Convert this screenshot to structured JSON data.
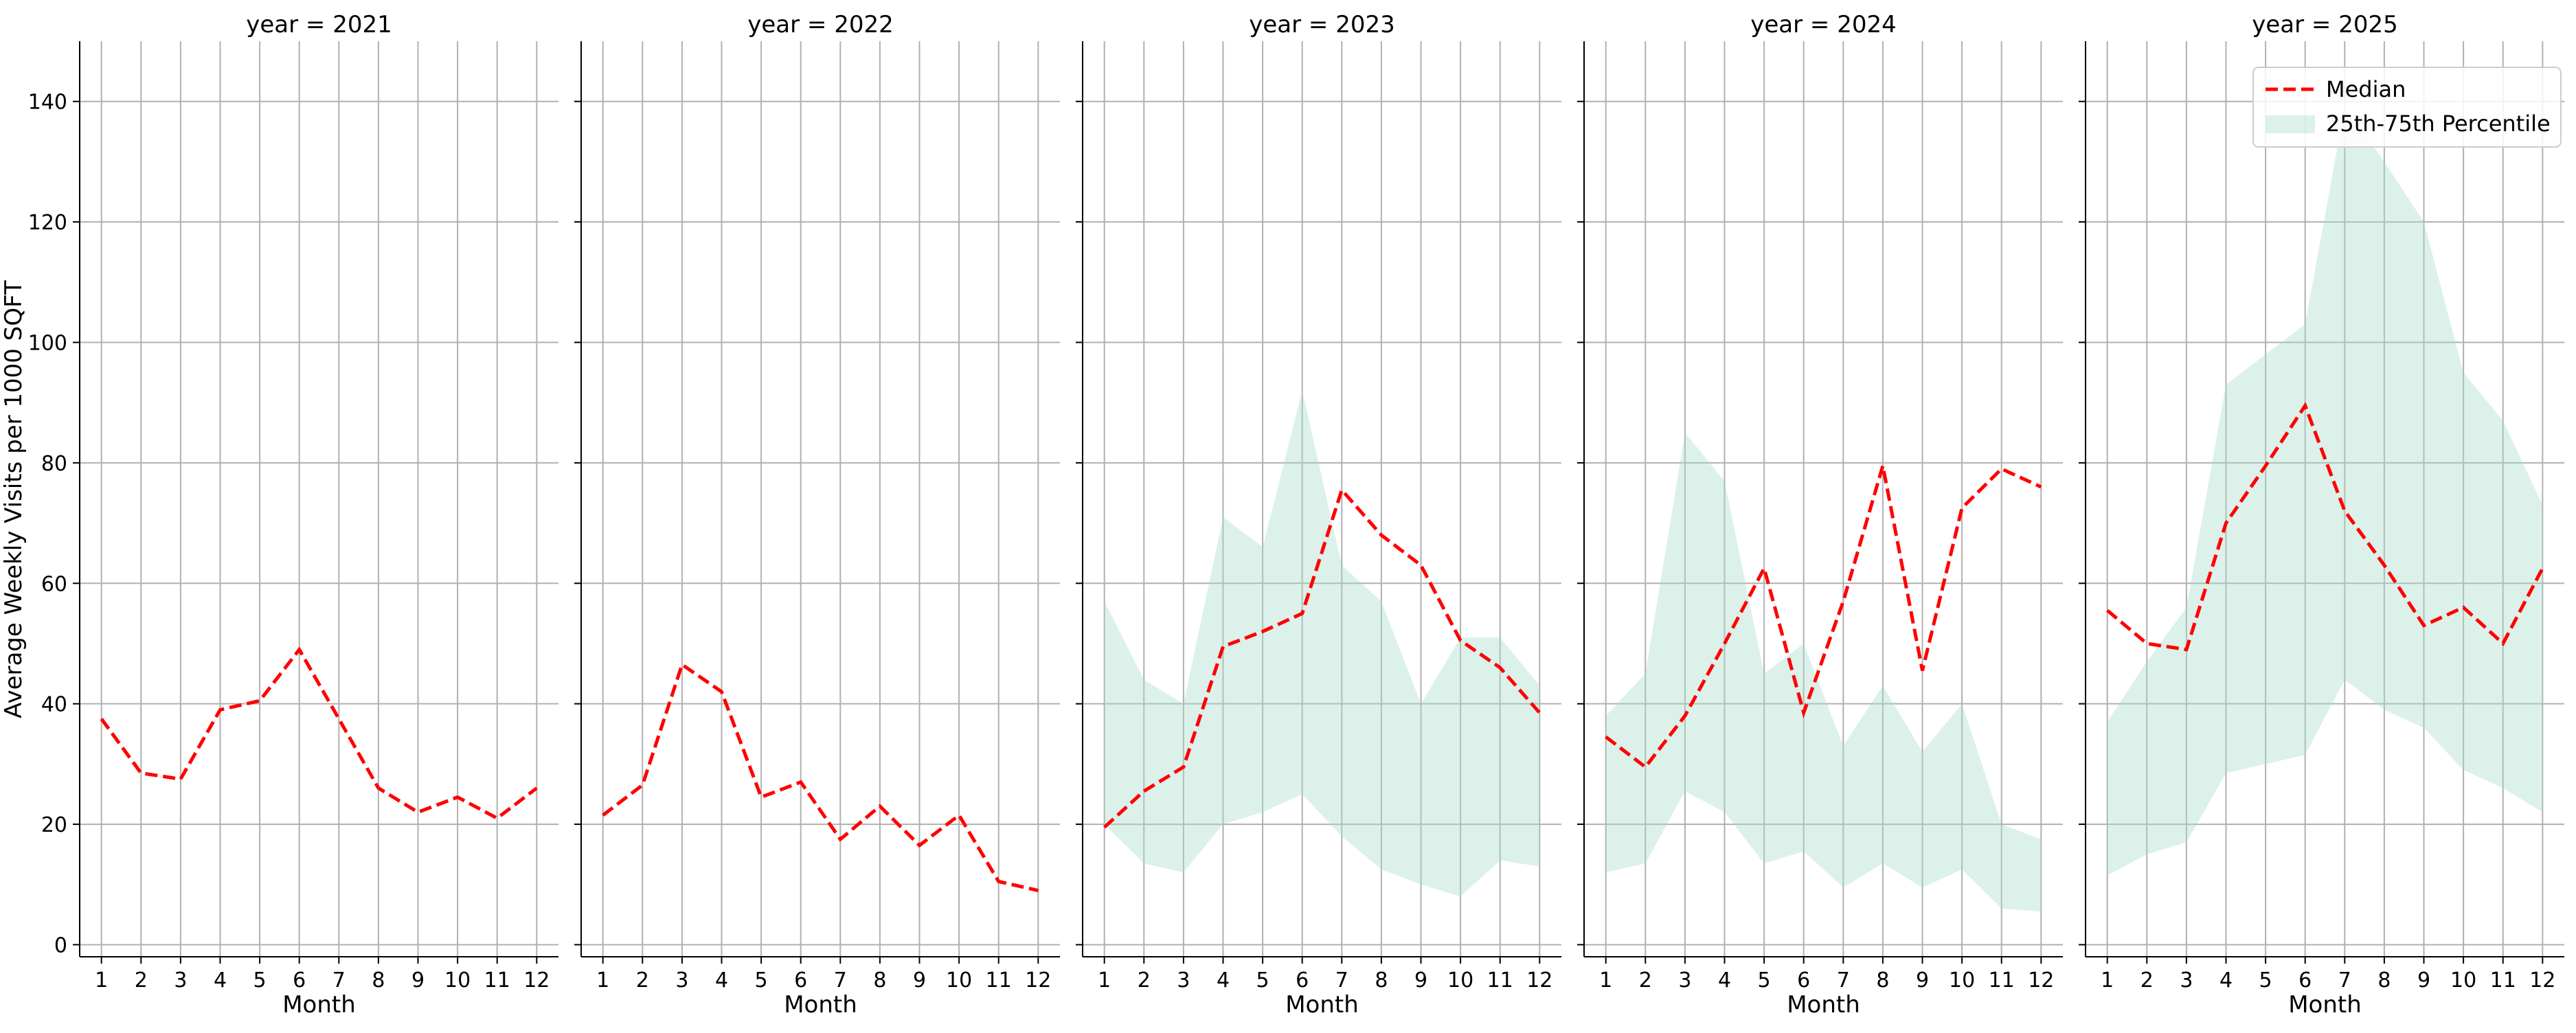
{
  "colors": {
    "median": "#ff0000",
    "band": "#a8dccb",
    "grid": "#b0b0b0",
    "axis": "#000000"
  },
  "legend": {
    "placement": "upper-right",
    "entries": [
      "Median",
      "25th-75th Percentile"
    ]
  },
  "chart_data": {
    "type": "line",
    "facet_by": "year",
    "ylabel": "Average Weekly Visits per 1000 SQFT",
    "xlabel": "Month",
    "x": [
      1,
      2,
      3,
      4,
      5,
      6,
      7,
      8,
      9,
      10,
      11,
      12
    ],
    "ylim": [
      -2,
      150
    ],
    "yticks": [
      0,
      20,
      40,
      60,
      80,
      100,
      120,
      140
    ],
    "grid": true,
    "panels": [
      {
        "title": "year = 2021",
        "median": [
          37.5,
          28.5,
          27.5,
          39,
          40.5,
          49,
          37.5,
          26,
          22,
          24.5,
          21,
          26
        ],
        "band": null
      },
      {
        "title": "year = 2022",
        "median": [
          21.5,
          26.5,
          46.5,
          42,
          24.5,
          27,
          17.5,
          23,
          16.5,
          21.5,
          10.5,
          9
        ],
        "band": null
      },
      {
        "title": "year = 2023",
        "median": [
          19.5,
          25.5,
          29.5,
          49.5,
          52,
          55,
          75.5,
          68,
          63,
          50.5,
          46,
          38.5
        ],
        "band": {
          "low": [
            20,
            13.5,
            12,
            20,
            22,
            25,
            18,
            12.5,
            10,
            8,
            14,
            13
          ],
          "high": [
            57,
            44,
            40,
            71,
            66,
            92,
            63,
            57,
            40,
            51,
            51,
            43
          ]
        }
      },
      {
        "title": "year = 2024",
        "median": [
          34.5,
          29.5,
          38,
          50,
          62.5,
          38.5,
          57,
          79.5,
          45.5,
          72.5,
          79,
          76
        ],
        "band": {
          "low": [
            12,
            13.5,
            25.5,
            22,
            13.5,
            15.5,
            9.5,
            13.5,
            9.5,
            12.5,
            6,
            5.5
          ],
          "high": [
            38,
            45,
            85,
            77,
            45,
            50,
            33,
            43,
            32,
            40,
            20,
            17.5
          ]
        }
      },
      {
        "title": "year = 2025",
        "median": [
          55.5,
          50,
          49,
          70,
          79.5,
          89.5,
          72,
          63,
          53,
          56,
          50,
          62.5
        ],
        "band": {
          "low": [
            11.5,
            15,
            17,
            28.5,
            30,
            31.5,
            44,
            39,
            36,
            29,
            26,
            22
          ],
          "high": [
            37,
            47,
            56,
            93,
            98,
            103,
            139,
            130,
            120,
            95,
            87,
            73
          ]
        }
      }
    ]
  }
}
